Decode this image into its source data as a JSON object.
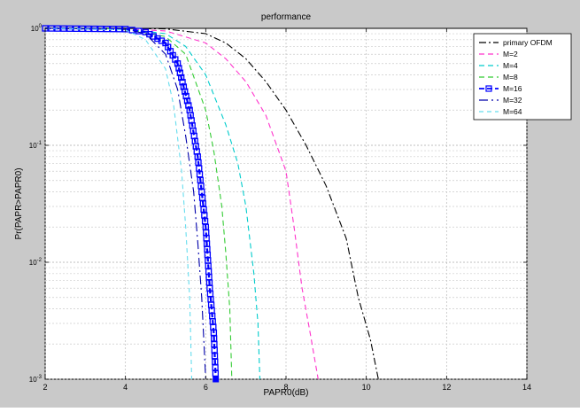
{
  "chart_data": {
    "type": "line",
    "title": "performance",
    "xlabel": "PAPR0(dB)",
    "ylabel": "Pr(PAPR>PAPR0)",
    "xlim": [
      2,
      14
    ],
    "ylim_log10": [
      -3,
      0
    ],
    "yscale": "log",
    "grid": true,
    "legend_position": "top-right",
    "x_ticks": [
      2,
      4,
      6,
      8,
      10,
      12,
      14
    ],
    "x_tick_labels": [
      "2",
      "4",
      "6",
      "8",
      "10",
      "12",
      "14"
    ],
    "y_ticks": [
      0.001,
      0.01,
      0.1,
      1
    ],
    "y_tick_labels": [
      "10^-3",
      "10^-2",
      "10^-1",
      "10^0"
    ],
    "series": [
      {
        "name": "primary OFDM",
        "color": "#000000",
        "dash": "8,3,2,3",
        "marker": "none",
        "points": [
          [
            2,
            1
          ],
          [
            4,
            1
          ],
          [
            5,
            0.99
          ],
          [
            6,
            0.9
          ],
          [
            6.5,
            0.75
          ],
          [
            7,
            0.55
          ],
          [
            7.5,
            0.35
          ],
          [
            8,
            0.2
          ],
          [
            8.5,
            0.1
          ],
          [
            9,
            0.045
          ],
          [
            9.5,
            0.016
          ],
          [
            9.8,
            0.005
          ],
          [
            10.1,
            0.0022
          ],
          [
            10.3,
            0.001
          ]
        ]
      },
      {
        "name": "M=2",
        "color": "#ff33cc",
        "dash": "6,4",
        "marker": "none",
        "points": [
          [
            2,
            1
          ],
          [
            4,
            0.99
          ],
          [
            5,
            0.95
          ],
          [
            6,
            0.75
          ],
          [
            6.5,
            0.55
          ],
          [
            7,
            0.35
          ],
          [
            7.5,
            0.18
          ],
          [
            8,
            0.06
          ],
          [
            8.2,
            0.02
          ],
          [
            8.4,
            0.006
          ],
          [
            8.6,
            0.0025
          ],
          [
            8.8,
            0.001
          ]
        ]
      },
      {
        "name": "M=4",
        "color": "#00cccc",
        "dash": "6,4",
        "marker": "none",
        "points": [
          [
            2,
            1
          ],
          [
            4,
            0.99
          ],
          [
            5,
            0.9
          ],
          [
            5.5,
            0.7
          ],
          [
            6,
            0.4
          ],
          [
            6.5,
            0.15
          ],
          [
            6.8,
            0.07
          ],
          [
            7,
            0.03
          ],
          [
            7.2,
            0.008
          ],
          [
            7.3,
            0.003
          ],
          [
            7.35,
            0.001
          ]
        ]
      },
      {
        "name": "M=8",
        "color": "#33cc33",
        "dash": "6,4",
        "marker": "none",
        "points": [
          [
            2,
            1
          ],
          [
            4,
            0.99
          ],
          [
            5,
            0.85
          ],
          [
            5.5,
            0.6
          ],
          [
            6,
            0.2
          ],
          [
            6.2,
            0.09
          ],
          [
            6.4,
            0.03
          ],
          [
            6.5,
            0.012
          ],
          [
            6.6,
            0.004
          ],
          [
            6.65,
            0.001
          ]
        ]
      },
      {
        "name": "M=16",
        "color": "#0000ff",
        "dash": "6,3",
        "marker": "square",
        "points": [
          [
            2,
            1
          ],
          [
            4,
            0.985
          ],
          [
            4.5,
            0.93
          ],
          [
            5,
            0.75
          ],
          [
            5.3,
            0.5
          ],
          [
            5.6,
            0.2
          ],
          [
            5.8,
            0.08
          ],
          [
            6,
            0.02
          ],
          [
            6.1,
            0.006
          ],
          [
            6.2,
            0.0025
          ],
          [
            6.25,
            0.001
          ]
        ]
      },
      {
        "name": "M=32",
        "color": "#0000aa",
        "dash": "10,4,2,4",
        "marker": "none",
        "points": [
          [
            2,
            1
          ],
          [
            4,
            0.98
          ],
          [
            4.5,
            0.9
          ],
          [
            5,
            0.6
          ],
          [
            5.3,
            0.3
          ],
          [
            5.5,
            0.12
          ],
          [
            5.7,
            0.04
          ],
          [
            5.8,
            0.015
          ],
          [
            5.9,
            0.005
          ],
          [
            6,
            0.001
          ]
        ]
      },
      {
        "name": "M=64",
        "color": "#66ddee",
        "dash": "5,4",
        "marker": "none",
        "points": [
          [
            2,
            1
          ],
          [
            4,
            0.97
          ],
          [
            4.5,
            0.8
          ],
          [
            5,
            0.45
          ],
          [
            5.2,
            0.22
          ],
          [
            5.4,
            0.06
          ],
          [
            5.5,
            0.02
          ],
          [
            5.6,
            0.005
          ],
          [
            5.65,
            0.001
          ]
        ]
      }
    ]
  }
}
